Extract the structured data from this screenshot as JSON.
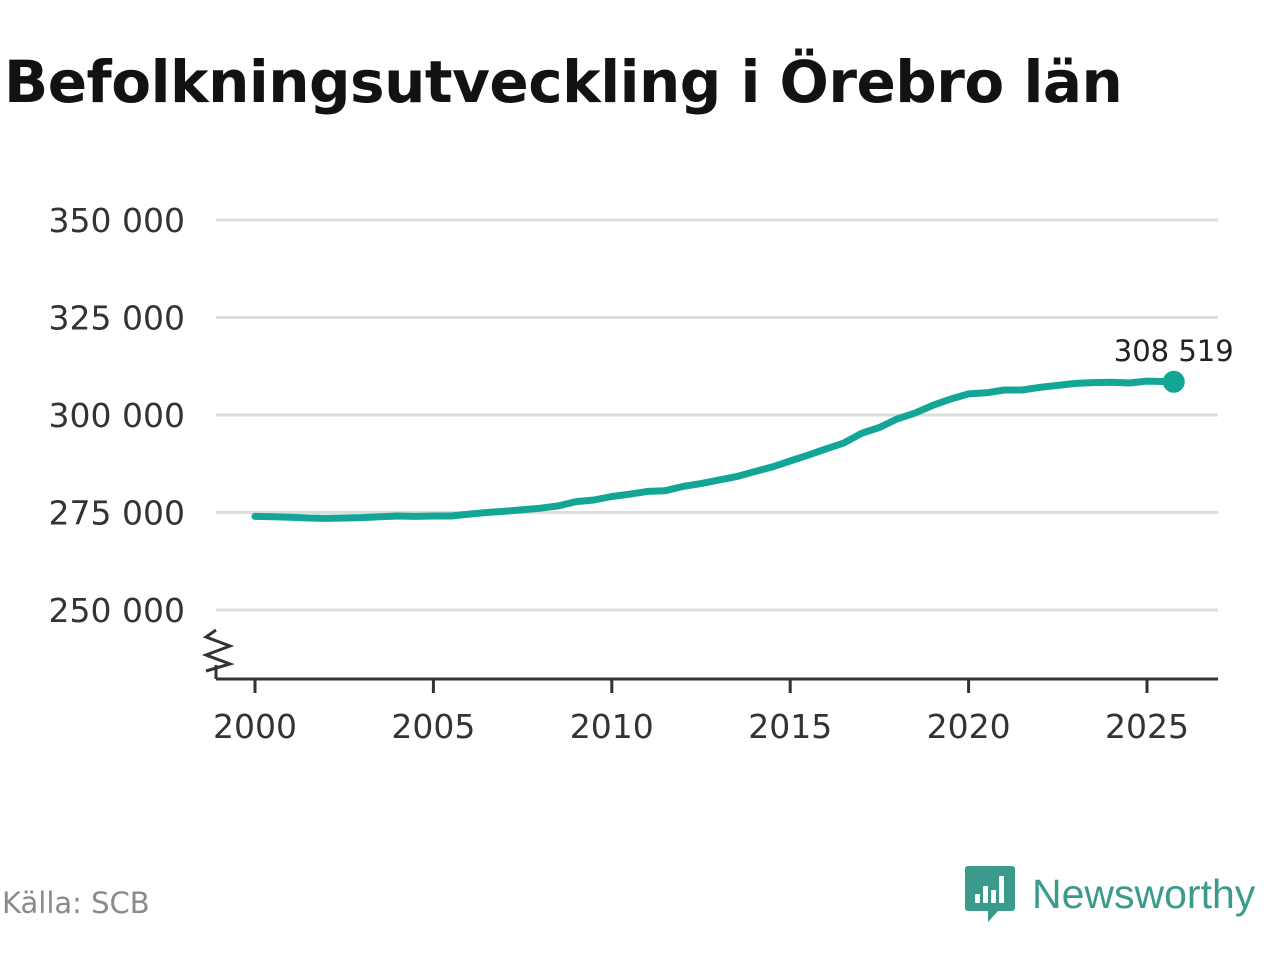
{
  "title": "Befolkningsutveckling i Örebro län",
  "source": "Källa: SCB",
  "brand": {
    "name": "Newsworthy",
    "icon": "newsworthy-logo-icon",
    "color": "#3a9b8d"
  },
  "chart_data": {
    "type": "line",
    "title": "Befolkningsutveckling i Örebro län",
    "xlabel": "",
    "ylabel": "",
    "xlim": [
      2000,
      2026
    ],
    "ylim": [
      250000,
      350000
    ],
    "axis_break": true,
    "grid": true,
    "legend": "none",
    "x_ticks": [
      2000,
      2005,
      2010,
      2015,
      2020,
      2025
    ],
    "x_tick_labels": [
      "2000",
      "2005",
      "2010",
      "2015",
      "2020",
      "2025"
    ],
    "y_ticks": [
      250000,
      275000,
      300000,
      325000,
      350000
    ],
    "y_tick_labels": [
      "250 000",
      "275 000",
      "300 000",
      "325 000",
      "350 000"
    ],
    "end_label": "308 519",
    "series": [
      {
        "color": "#13a596",
        "x": [
          2000.0,
          2000.5,
          2001.0,
          2001.5,
          2002.0,
          2002.5,
          2003.0,
          2003.5,
          2004.0,
          2004.5,
          2005.0,
          2005.5,
          2006.0,
          2006.5,
          2007.0,
          2007.5,
          2008.0,
          2008.5,
          2009.0,
          2009.5,
          2010.0,
          2010.5,
          2011.0,
          2011.5,
          2012.0,
          2012.5,
          2013.0,
          2013.5,
          2014.0,
          2014.5,
          2015.0,
          2015.5,
          2016.0,
          2016.5,
          2017.0,
          2017.5,
          2018.0,
          2018.5,
          2019.0,
          2019.5,
          2020.0,
          2020.5,
          2021.0,
          2021.5,
          2022.0,
          2022.5,
          2023.0,
          2023.5,
          2024.0,
          2024.5,
          2025.0,
          2025.75
        ],
        "values": [
          274000,
          273900,
          273800,
          273600,
          273500,
          273600,
          273700,
          273900,
          274100,
          274000,
          274100,
          274100,
          274600,
          275000,
          275300,
          275700,
          276100,
          276700,
          277800,
          278200,
          279100,
          279700,
          280400,
          280600,
          281700,
          282400,
          283300,
          284200,
          285500,
          286700,
          288200,
          289700,
          291300,
          292800,
          295300,
          296800,
          299000,
          300500,
          302500,
          304100,
          305400,
          305700,
          306400,
          306400,
          307100,
          307600,
          308100,
          308300,
          308400,
          308200,
          308700,
          308519
        ]
      }
    ]
  }
}
